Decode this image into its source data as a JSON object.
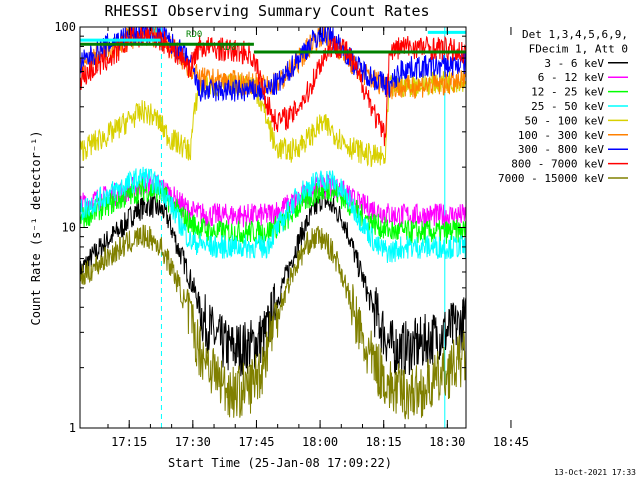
{
  "chart_data": {
    "type": "line",
    "title": "RHESSI Observing Summary Count Rates",
    "xlabel": "Start Time (25-Jan-08 17:09:22)",
    "ylabel": "Count Rate (s⁻¹ detector⁻¹)",
    "yscale": "log",
    "xlim": [
      9.4,
      100.4
    ],
    "ylim": [
      1,
      100
    ],
    "x_unit": "minutes after 17:09:22",
    "xticks": [
      {
        "value": 5.6,
        "label": "17:15"
      },
      {
        "value": 20.6,
        "label": "17:30"
      },
      {
        "value": 35.6,
        "label": "17:45"
      },
      {
        "value": 50.6,
        "label": "18:00"
      },
      {
        "value": 65.6,
        "label": "18:15"
      },
      {
        "value": 80.6,
        "label": "18:30"
      },
      {
        "value": 95.6,
        "label": "18:45"
      }
    ],
    "yticks": [
      {
        "value": 1,
        "label": "1"
      },
      {
        "value": 10,
        "label": "10"
      },
      {
        "value": 100,
        "label": "100"
      }
    ],
    "legend": {
      "position": "right",
      "header": [
        "Det 1,3,4,5,6,9,",
        "FDecim 1, Att 0"
      ],
      "entries": [
        {
          "label": "3 - 6 keV",
          "color": "#000000"
        },
        {
          "label": "6 - 12 keV",
          "color": "#ff00ff"
        },
        {
          "label": "12 - 25 keV",
          "color": "#00ff00"
        },
        {
          "label": "25 - 50 keV",
          "color": "#00ffff"
        },
        {
          "label": "50 - 100 keV",
          "color": "#d8d000"
        },
        {
          "label": "100 - 300 keV",
          "color": "#ff8000"
        },
        {
          "label": "300 - 800 keV",
          "color": "#0000ff"
        },
        {
          "label": "800 - 7000 keV",
          "color": "#ff0000"
        },
        {
          "label": "7000 - 15000 keV",
          "color": "#808000"
        }
      ]
    },
    "series": [
      {
        "name": "3 - 6 keV",
        "color": "#000000",
        "x": [
          -6,
          4,
          7,
          10,
          14,
          17,
          20,
          23,
          26,
          29,
          32,
          35,
          38,
          40,
          43,
          46,
          49,
          51,
          53,
          56,
          59,
          62,
          65,
          67,
          68,
          71,
          74,
          77,
          80,
          83,
          86,
          89,
          92,
          94.5
        ],
        "y": [
          6,
          10,
          12,
          13,
          12,
          8,
          5.5,
          3.5,
          2.8,
          2.5,
          2.5,
          2.6,
          3.0,
          4.0,
          6.0,
          9.0,
          12,
          14,
          13,
          11,
          7,
          4.5,
          3.2,
          2.6,
          2.5,
          2.5,
          2.6,
          2.8,
          3.0,
          3.2,
          3.5,
          4.0,
          5.0,
          7.0
        ]
      },
      {
        "name": "6 - 12 keV",
        "color": "#ff00ff",
        "x": [
          -6,
          4,
          9,
          13,
          17,
          20,
          24,
          30,
          35,
          38,
          42,
          46,
          50,
          53,
          56,
          60,
          65,
          68,
          72,
          78,
          84,
          90,
          94.5
        ],
        "y": [
          13,
          15,
          16.5,
          16,
          13.5,
          12,
          11.5,
          11.5,
          11.5,
          11.5,
          12.5,
          14,
          16,
          16.5,
          15,
          13,
          12,
          11.5,
          11.5,
          11.5,
          11.5,
          12,
          12.5
        ]
      },
      {
        "name": "12 - 25 keV",
        "color": "#00ff00",
        "x": [
          -6,
          4,
          9,
          13,
          17,
          20,
          25,
          35,
          38,
          42,
          46,
          50,
          53,
          56,
          60,
          65,
          68,
          72,
          80,
          90,
          94.5
        ],
        "y": [
          11,
          14,
          15.5,
          15,
          12,
          10.5,
          9.5,
          9.5,
          9.5,
          10.5,
          13,
          15,
          15.5,
          14,
          11.5,
          10,
          9.5,
          9.5,
          9.5,
          9.8,
          10
        ]
      },
      {
        "name": "25 - 50 keV",
        "color": "#00ffff",
        "x": [
          -6,
          4,
          9,
          13,
          17,
          20,
          25,
          35,
          38,
          42,
          46,
          50,
          53,
          56,
          60,
          64,
          67,
          70,
          75,
          85,
          94.5
        ],
        "y": [
          12,
          16,
          18,
          16,
          11,
          8.5,
          8,
          8,
          8,
          11,
          15,
          17,
          17.5,
          15,
          11,
          8,
          7.5,
          8,
          8,
          8,
          8.5
        ]
      },
      {
        "name": "50 - 100 keV",
        "color": "#d8d000",
        "x": [
          -6,
          2,
          6,
          9,
          12,
          15,
          20,
          22,
          35,
          37,
          40,
          44,
          48,
          51,
          53,
          55,
          58,
          62,
          66,
          67,
          75,
          90,
          94.5
        ],
        "y": [
          24,
          30,
          35,
          38,
          35,
          28,
          24,
          50,
          52,
          40,
          25,
          24,
          28,
          33,
          31,
          28,
          25,
          23,
          22,
          50,
          52,
          56,
          58
        ]
      },
      {
        "name": "100 - 300 keV",
        "color": "#ff8000",
        "x": [
          -6,
          2,
          7,
          10,
          14,
          18,
          20,
          22,
          35,
          38,
          42,
          46,
          49,
          51,
          53,
          56,
          59,
          63,
          67,
          70,
          80,
          90,
          94.5
        ],
        "y": [
          62,
          80,
          90,
          92,
          85,
          70,
          62,
          55,
          52,
          50,
          55,
          70,
          85,
          92,
          88,
          75,
          62,
          55,
          50,
          50,
          52,
          55,
          58
        ]
      },
      {
        "name": "300 - 800 keV",
        "color": "#0000ff",
        "x": [
          -6,
          2,
          7,
          10,
          14,
          18,
          20,
          22,
          35,
          38,
          42,
          46,
          49,
          51,
          53,
          56,
          59,
          63,
          67,
          70,
          80,
          90,
          94.5
        ],
        "y": [
          65,
          85,
          92,
          94,
          88,
          74,
          66,
          48,
          48,
          48,
          55,
          72,
          86,
          93,
          90,
          78,
          64,
          56,
          50,
          62,
          64,
          68,
          70
        ]
      },
      {
        "name": "800 - 7000 keV",
        "color": "#ff0000",
        "x": [
          -6,
          2,
          6,
          9,
          12,
          15,
          18,
          20,
          22,
          30,
          34,
          36,
          38,
          40,
          44,
          48,
          51,
          53,
          56,
          60,
          64,
          66,
          67,
          70,
          80,
          90,
          94.5
        ],
        "y": [
          55,
          72,
          88,
          92,
          90,
          80,
          70,
          62,
          80,
          76,
          74,
          60,
          42,
          34,
          36,
          48,
          68,
          80,
          80,
          55,
          34,
          28,
          75,
          80,
          78,
          70,
          65
        ]
      },
      {
        "name": "7000 - 15000 keV",
        "color": "#808000",
        "x": [
          -6,
          4,
          8,
          10,
          13,
          16,
          19,
          22,
          25,
          28,
          31,
          34,
          37,
          39,
          42,
          45,
          48,
          50,
          52,
          55,
          58,
          61,
          64,
          67,
          70,
          73,
          76,
          79,
          82,
          85,
          88,
          91,
          94.5
        ],
        "y": [
          5.5,
          8,
          9,
          9,
          8,
          6,
          4,
          2.5,
          2,
          1.6,
          1.5,
          1.6,
          2.0,
          3.0,
          4.5,
          6.5,
          8.5,
          9.0,
          8.5,
          6.5,
          4,
          2.5,
          2,
          1.6,
          1.5,
          1.5,
          1.6,
          1.8,
          2.0,
          2.3,
          2.8,
          3.5,
          4.5
        ]
      }
    ],
    "flags": [
      {
        "label": "RD0",
        "color": "#008000",
        "x": [
          -6,
          35
        ],
        "y": 82,
        "text_x": 19,
        "text_y": 89
      },
      {
        "label": "RD0",
        "color": "#008000",
        "x": [
          35,
          94.5
        ],
        "y": 75,
        "text_x": 27,
        "text_y": 77
      },
      {
        "label": "N",
        "color": "#00ffff",
        "x": [
          -6,
          13
        ],
        "y": 86,
        "text_x": 11,
        "text_y": 94
      },
      {
        "label": "",
        "color": "#00ffff",
        "x": [
          76,
          95
        ],
        "y": 94,
        "text_x": 0,
        "text_y": 0
      }
    ],
    "vlines": [
      {
        "x": 13.2,
        "style": "dashed",
        "color": "#00ffff"
      },
      {
        "x": 80.0,
        "style": "solid",
        "color": "#00ffff"
      },
      {
        "x": 94.0,
        "style": "dashed",
        "color": "#00ffff"
      }
    ],
    "footer": "13-Oct-2021 17:33"
  }
}
